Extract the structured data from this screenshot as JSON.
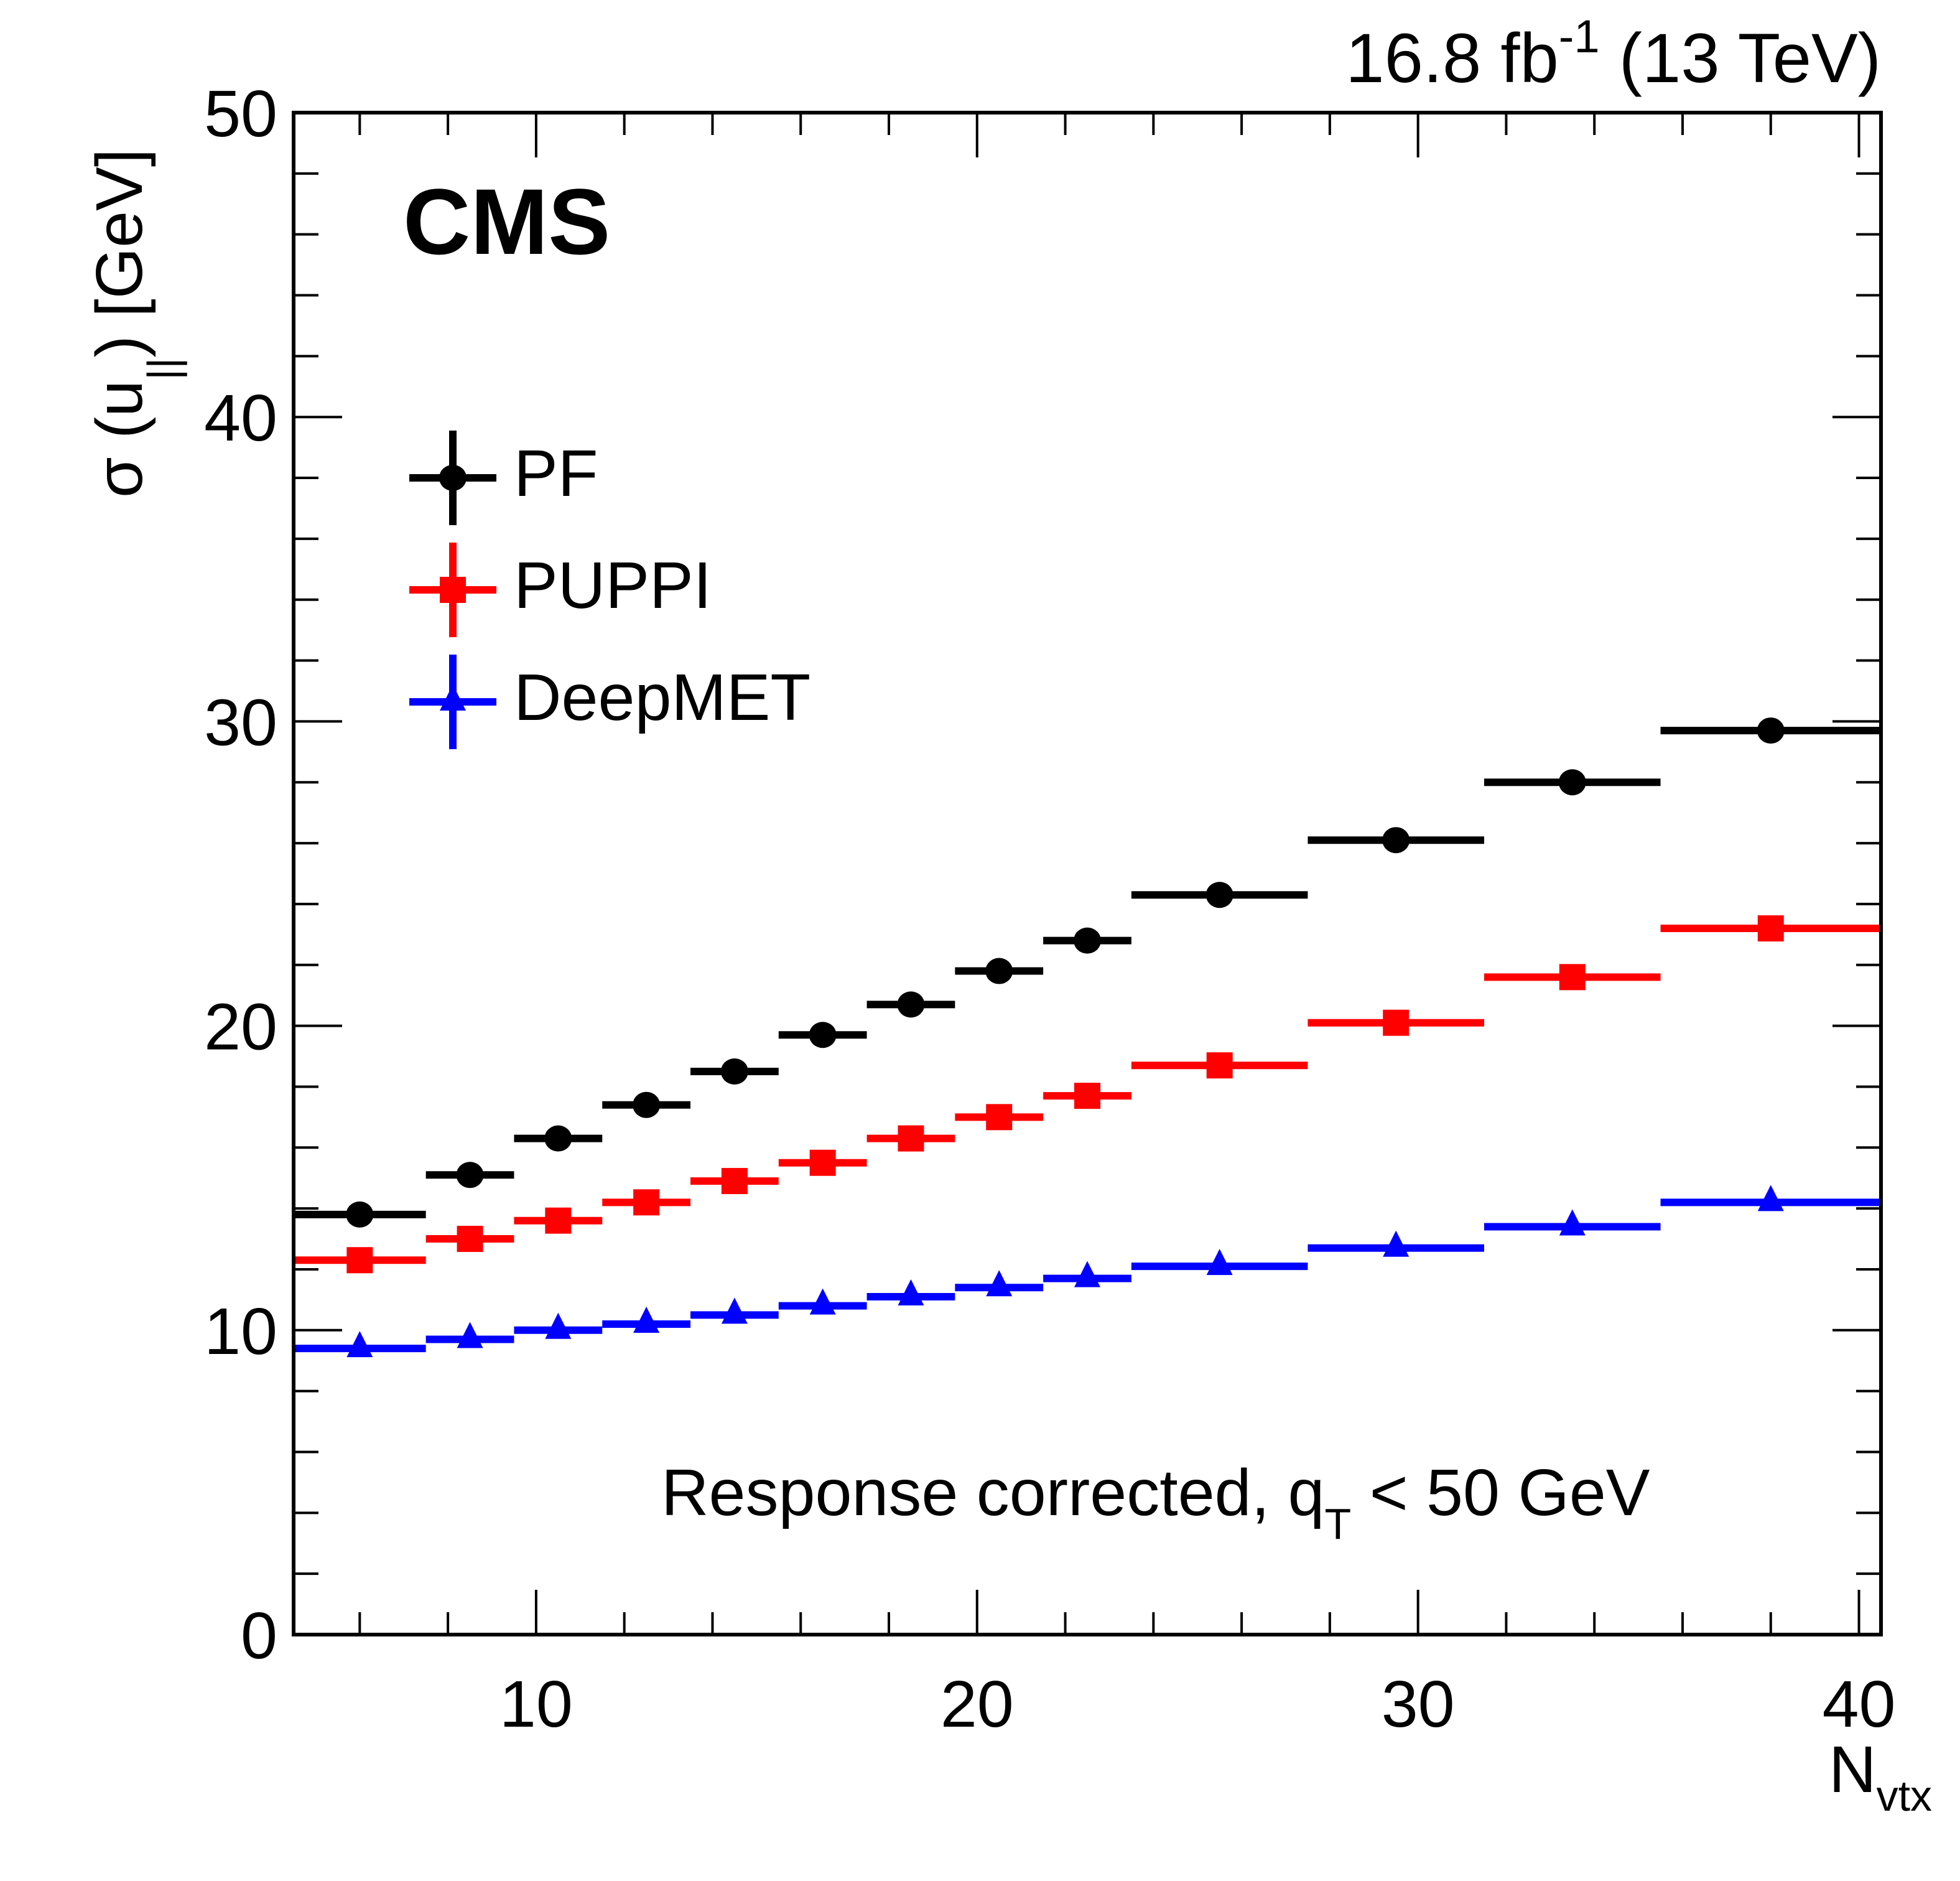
{
  "chart_data": {
    "type": "scatter",
    "title": "",
    "experiment_label": "CMS",
    "lumi_label": {
      "value": "16.8",
      "unit": "fb",
      "exponent": "-1",
      "energy": "(13 TeV)"
    },
    "xlabel": {
      "main": "N",
      "sub": "vtx"
    },
    "ylabel": {
      "prefix": "σ (u",
      "sub": "||",
      "suffix": ") [GeV]"
    },
    "annotation": {
      "main": "Response corrected, q",
      "sub": "T",
      "suffix": " < 50 GeV"
    },
    "xlim": [
      4.5,
      40.5
    ],
    "ylim": [
      0,
      50
    ],
    "x_major_ticks": [
      10,
      20,
      30,
      40
    ],
    "x_tick_labels": [
      "10",
      "20",
      "30",
      "40"
    ],
    "x_minor_step": 2,
    "y_major_ticks": [
      0,
      10,
      20,
      30,
      40,
      50
    ],
    "y_tick_labels": [
      "0",
      "10",
      "20",
      "30",
      "40",
      "50"
    ],
    "y_minor_step": 2,
    "grid": false,
    "legend_position": "top-left",
    "bins": [
      [
        4.5,
        7.5
      ],
      [
        7.5,
        9.5
      ],
      [
        9.5,
        11.5
      ],
      [
        11.5,
        13.5
      ],
      [
        13.5,
        15.5
      ],
      [
        15.5,
        17.5
      ],
      [
        17.5,
        19.5
      ],
      [
        19.5,
        21.5
      ],
      [
        21.5,
        23.5
      ],
      [
        23.5,
        27.5
      ],
      [
        27.5,
        31.5
      ],
      [
        31.5,
        35.5
      ],
      [
        35.5,
        40.5
      ]
    ],
    "x": [
      6,
      8.5,
      10.5,
      12.5,
      14.5,
      16.5,
      18.5,
      20.5,
      22.5,
      25.5,
      29.5,
      33.5,
      38
    ],
    "series": [
      {
        "name": "PF",
        "color": "#000000",
        "marker": "circle",
        "values": [
          13.8,
          15.1,
          16.3,
          17.4,
          18.5,
          19.7,
          20.7,
          21.8,
          22.8,
          24.3,
          26.1,
          28.0,
          29.7
        ]
      },
      {
        "name": "PUPPI",
        "color": "#ff0000",
        "marker": "square",
        "values": [
          12.3,
          13.0,
          13.6,
          14.2,
          14.9,
          15.5,
          16.3,
          17.0,
          17.7,
          18.7,
          20.1,
          21.6,
          23.2
        ]
      },
      {
        "name": "DeepMET",
        "color": "#0000ff",
        "marker": "triangle",
        "values": [
          9.4,
          9.7,
          10.0,
          10.2,
          10.5,
          10.8,
          11.1,
          11.4,
          11.7,
          12.1,
          12.7,
          13.4,
          14.2
        ]
      }
    ]
  }
}
